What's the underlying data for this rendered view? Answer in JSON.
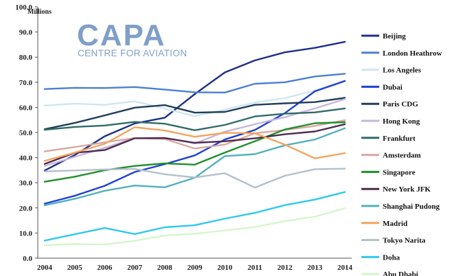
{
  "chart_data": {
    "type": "line",
    "title": "",
    "xlabel": "",
    "ylabel": "",
    "unit_label": "Millions",
    "x": [
      "2004",
      "2005",
      "2006",
      "2007",
      "2008",
      "2009",
      "2010",
      "2011",
      "2012",
      "2013",
      "2014"
    ],
    "ylim": [
      0,
      100
    ],
    "yticks": [
      "0.0",
      "10.0",
      "20.0",
      "30.0",
      "40.0",
      "50.0",
      "60.0",
      "70.0",
      "80.0",
      "90.0",
      "100.0"
    ],
    "grid": false,
    "legend_position": "right",
    "series": [
      {
        "name": "Beijing",
        "color": "#1b2e8a",
        "values": [
          34.9,
          41.0,
          48.5,
          53.6,
          55.9,
          65.3,
          73.9,
          78.7,
          81.9,
          83.7,
          86.1
        ]
      },
      {
        "name": "London Heathrow",
        "color": "#4a7fd4",
        "values": [
          67.3,
          67.8,
          67.7,
          68.1,
          67.1,
          66.0,
          65.9,
          69.4,
          70.0,
          72.3,
          73.4
        ]
      },
      {
        "name": "Los Angeles",
        "color": "#cfe6f0",
        "values": [
          60.7,
          61.5,
          61.0,
          62.4,
          59.5,
          56.5,
          59.1,
          61.9,
          63.7,
          66.7,
          70.7
        ]
      },
      {
        "name": "Dubai",
        "color": "#1f3fd6",
        "values": [
          21.7,
          24.8,
          28.8,
          34.3,
          37.4,
          40.9,
          47.2,
          51.0,
          57.7,
          66.4,
          70.5
        ]
      },
      {
        "name": "Paris CDG",
        "color": "#1f3d5a",
        "values": [
          51.3,
          53.8,
          56.8,
          59.9,
          60.9,
          57.9,
          58.2,
          61.0,
          61.6,
          62.1,
          63.8
        ]
      },
      {
        "name": "Hong Kong",
        "color": "#c6b6dc",
        "values": [
          36.7,
          40.3,
          43.9,
          47.8,
          47.9,
          45.6,
          50.3,
          53.3,
          56.1,
          59.6,
          63.3
        ]
      },
      {
        "name": "Frankfurt",
        "color": "#2f6b66",
        "values": [
          51.1,
          52.2,
          52.8,
          54.2,
          53.5,
          50.9,
          53.0,
          56.4,
          57.5,
          58.0,
          59.6
        ]
      },
      {
        "name": "Amsterdam",
        "color": "#d9a8a0",
        "values": [
          42.5,
          44.2,
          46.1,
          47.8,
          47.4,
          43.6,
          45.2,
          49.7,
          51.0,
          52.6,
          54.9
        ]
      },
      {
        "name": "Singapore",
        "color": "#1f8f2a",
        "values": [
          30.4,
          32.4,
          35.0,
          36.7,
          37.7,
          37.2,
          42.0,
          46.5,
          51.2,
          53.7,
          54.1
        ]
      },
      {
        "name": "New York JFK",
        "color": "#4d2a4f",
        "values": [
          37.5,
          41.9,
          43.0,
          47.7,
          47.8,
          45.9,
          46.5,
          47.7,
          49.3,
          50.4,
          53.3
        ]
      },
      {
        "name": "Shanghai Pudong",
        "color": "#52b0bc",
        "values": [
          21.0,
          23.6,
          26.8,
          28.9,
          28.2,
          32.0,
          40.6,
          41.4,
          44.9,
          47.2,
          51.7
        ]
      },
      {
        "name": "Madrid",
        "color": "#f3a35c",
        "values": [
          38.7,
          42.0,
          45.5,
          52.1,
          50.8,
          48.3,
          49.9,
          49.7,
          45.2,
          39.7,
          41.8
        ]
      },
      {
        "name": "Tokyo Narita",
        "color": "#b3bfcc",
        "values": [
          34.5,
          34.9,
          35.3,
          35.5,
          33.4,
          32.1,
          33.8,
          28.1,
          32.8,
          35.4,
          35.6
        ]
      },
      {
        "name": "Doha",
        "color": "#2ec8ee",
        "values": [
          7.0,
          9.5,
          12.0,
          9.6,
          12.3,
          13.1,
          15.7,
          18.0,
          21.1,
          23.3,
          26.3
        ]
      },
      {
        "name": "Abu Dhabi",
        "color": "#d6f5cc",
        "values": [
          5.2,
          5.6,
          5.4,
          6.9,
          9.0,
          9.7,
          11.0,
          12.4,
          14.7,
          16.5,
          19.9
        ]
      }
    ]
  },
  "logo": {
    "main": "CAPA",
    "sub": "CENTRE FOR AVIATION",
    "color": "#7f9fc8"
  }
}
